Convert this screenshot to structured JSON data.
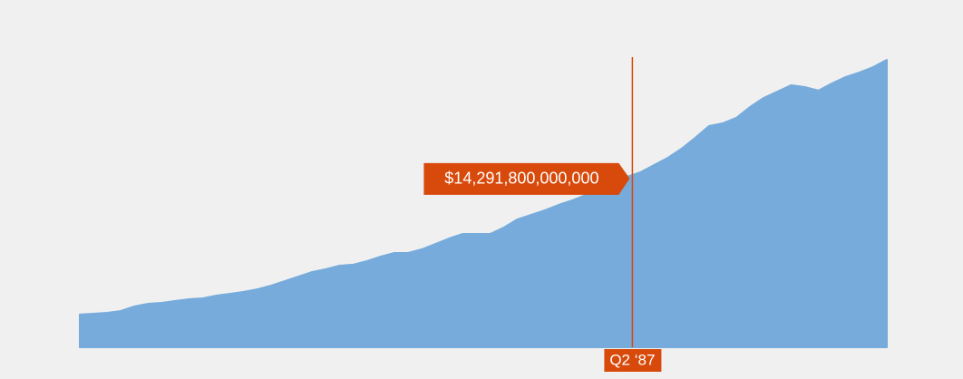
{
  "chart_data": {
    "type": "area",
    "color": "#76abdb",
    "highlight_color": "#d84a0b",
    "categories": [
      null,
      null,
      null,
      null,
      null,
      null,
      null,
      null,
      null,
      null,
      null,
      null,
      null,
      null,
      null,
      null,
      null,
      null,
      null,
      null,
      null,
      null,
      null,
      null,
      null,
      null,
      null,
      null,
      null,
      null,
      null,
      null,
      null,
      null,
      null,
      null,
      null,
      null,
      null,
      null,
      "Q2 ‘87",
      null,
      null,
      null,
      null,
      null,
      null,
      null,
      null,
      null,
      null,
      null,
      null,
      null,
      null,
      null,
      null,
      null,
      null,
      null
    ],
    "values": [
      2740000000000.0,
      2810000000000.0,
      2890000000000.0,
      3040000000000.0,
      3420000000000.0,
      3650000000000.0,
      3720000000000.0,
      3880000000000.0,
      4030000000000.0,
      4100000000000.0,
      4330000000000.0,
      4480000000000.0,
      4640000000000.0,
      4860000000000.0,
      5170000000000.0,
      5550000000000.0,
      5930000000000.0,
      6310000000000.0,
      6540000000000.0,
      6840000000000.0,
      6920000000000.0,
      7220000000000.0,
      7600000000000.0,
      7900000000000.0,
      7900000000000.0,
      8210000000000.0,
      8660000000000.0,
      9120000000000.0,
      9500000000000.0,
      9500000000000.0,
      9500000000000.0,
      10030000000000.0,
      10720000000000.0,
      11100000000000.0,
      11480000000000.0,
      11930000000000.0,
      12310000000000.0,
      12770000000000.0,
      13300000000000.0,
      13830000000000.0,
      14291800000000,
      14670000000000.0,
      15280000000000.0,
      15880000000000.0,
      16640000000000.0,
      17560000000000.0,
      18540000000000.0,
      18770000000000.0,
      19230000000000.0,
      20140000000000.0,
      20900000000000.0,
      21430000000000.0,
      21960000000000.0,
      21810000000000.0,
      21510000000000.0,
      22120000000000.0,
      22650000000000.0,
      23030000000000.0,
      23480000000000.0,
      24090000000000.0
    ],
    "value_labels": [
      null,
      null,
      null,
      null,
      null,
      null,
      null,
      null,
      null,
      null,
      null,
      null,
      null,
      null,
      null,
      null,
      null,
      null,
      null,
      null,
      null,
      null,
      null,
      null,
      null,
      null,
      null,
      null,
      null,
      null,
      null,
      null,
      null,
      null,
      null,
      null,
      null,
      null,
      null,
      null,
      "$14,291,800,000,000",
      null,
      null,
      null,
      null,
      null,
      null,
      null,
      null,
      null,
      null,
      null,
      null,
      null,
      null,
      null,
      null,
      null,
      null,
      null
    ],
    "ylim": [
      0,
      25000000000000.0
    ]
  }
}
